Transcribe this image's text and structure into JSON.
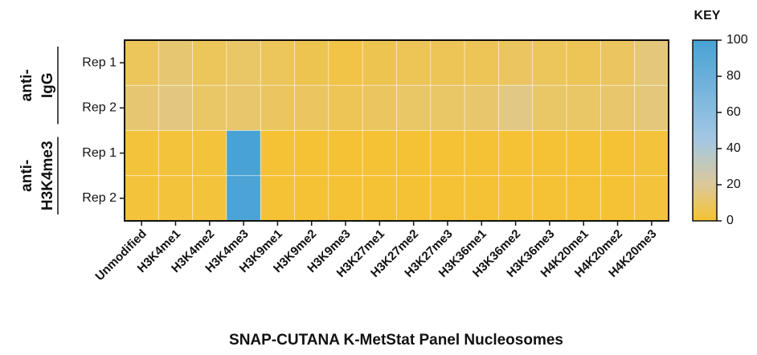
{
  "chart_data": {
    "type": "heatmap",
    "x_title": "SNAP-CUTANA K-MetStat Panel Nucleosomes",
    "categories": [
      "Unmodified",
      "H3K4me1",
      "H3K4me2",
      "H3K4me3",
      "H3K9me1",
      "H3K9me2",
      "H3K9me3",
      "H3K27me1",
      "H3K27me2",
      "H3K27me3",
      "H3K36me1",
      "H3K36me2",
      "H3K36me3",
      "H4K20me1",
      "H4K20me2",
      "H4K20me3"
    ],
    "row_groups": [
      {
        "label_lines": [
          "anti-",
          "IgG"
        ],
        "rows": [
          "Rep 1",
          "Rep 2"
        ],
        "values": [
          [
            8,
            12,
            8,
            10,
            8,
            6,
            4,
            6,
            7,
            7,
            7,
            9,
            8,
            7,
            9,
            14
          ],
          [
            12,
            15,
            10,
            11,
            9,
            9,
            7,
            9,
            10,
            10,
            11,
            16,
            10,
            10,
            11,
            14
          ]
        ]
      },
      {
        "label_lines": [
          "anti-",
          "H3K4me3"
        ],
        "rows": [
          "Rep 1",
          "Rep 2"
        ],
        "values": [
          [
            2,
            2,
            2,
            100,
            1,
            1,
            1,
            1,
            1,
            1,
            1,
            1,
            1,
            1,
            1,
            2
          ],
          [
            2,
            2,
            2,
            98,
            1,
            1,
            1,
            1,
            1,
            1,
            1,
            1,
            1,
            1,
            1,
            2
          ]
        ]
      }
    ],
    "colorbar_title": "KEY",
    "colorbar_lim": [
      0,
      100
    ],
    "colorbar_ticks": [
      0,
      20,
      40,
      60,
      80,
      100
    ],
    "colorscale": [
      [
        0,
        "#f6c231"
      ],
      [
        20,
        "#dcc99a"
      ],
      [
        45,
        "#a3c7e3"
      ],
      [
        100,
        "#48a2d5"
      ]
    ]
  }
}
